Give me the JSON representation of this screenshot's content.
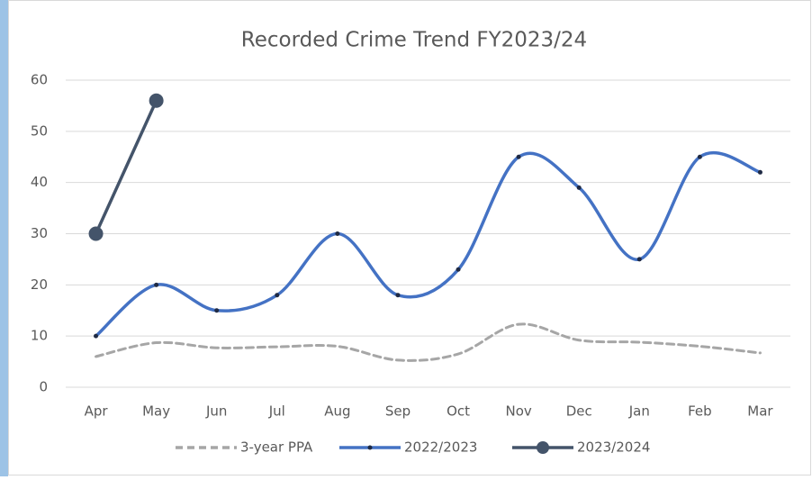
{
  "chart_data": {
    "type": "line",
    "title": "Recorded Crime Trend FY2023/24",
    "categories": [
      "Apr",
      "May",
      "Jun",
      "Jul",
      "Aug",
      "Sep",
      "Oct",
      "Nov",
      "Dec",
      "Jan",
      "Feb",
      "Mar"
    ],
    "series": [
      {
        "name": "3-year PPA",
        "color": "#a6a6a6",
        "dashed": true,
        "marker": false,
        "values": [
          6,
          8.7,
          7.7,
          7.9,
          8,
          5.3,
          6.5,
          12.3,
          9.2,
          8.8,
          8,
          6.7
        ]
      },
      {
        "name": "2022/2023",
        "color": "#4472c4",
        "dashed": false,
        "marker": "small",
        "values": [
          10,
          20,
          15,
          18,
          30,
          18,
          23,
          45,
          39,
          25,
          45,
          42
        ]
      },
      {
        "name": "2023/2024",
        "color": "#44546a",
        "dashed": false,
        "marker": "large",
        "values": [
          30,
          56,
          null,
          null,
          null,
          null,
          null,
          null,
          null,
          null,
          null,
          null
        ]
      }
    ],
    "ylim": [
      0,
      60
    ],
    "yticks": [
      0,
      10,
      20,
      30,
      40,
      50,
      60
    ],
    "grid": true,
    "smooth": true,
    "legend": "bottom"
  }
}
